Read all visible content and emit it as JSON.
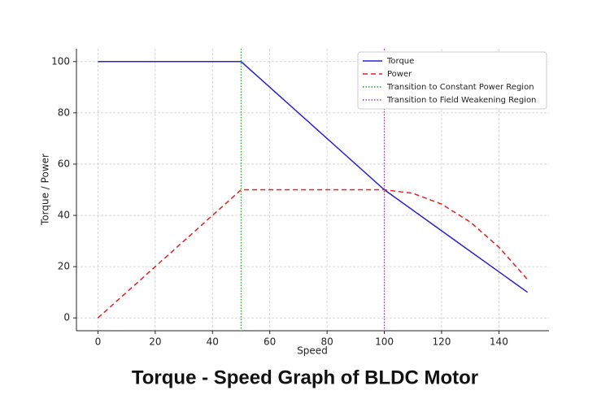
{
  "chart_data": {
    "type": "line",
    "title": "Torque - Speed Graph of BLDC Motor",
    "x_label": "Speed",
    "y_label": "Torque / Power",
    "x": [
      0,
      50,
      100,
      110,
      120,
      130,
      140,
      150
    ],
    "series": [
      {
        "name": "Torque",
        "color": "#2424d0",
        "dash": "solid",
        "values": [
          100,
          100,
          50,
          42,
          34,
          26,
          18,
          10
        ]
      },
      {
        "name": "Power",
        "color": "#e02020",
        "dash": "dashed",
        "values": [
          0,
          50,
          50,
          48.6,
          44.4,
          37.4,
          27.6,
          15
        ]
      }
    ],
    "vlines": [
      {
        "name": "Transition to Constant Power Region",
        "color": "#2a9a2a",
        "x": 50
      },
      {
        "name": "Transition to Field Weakening Region",
        "color": "#9a3ab8",
        "x": 100
      }
    ],
    "xlim": [
      -7.5,
      157.5
    ],
    "xticks": [
      0,
      20,
      40,
      60,
      80,
      100,
      120,
      140
    ],
    "ylim": [
      -5,
      105
    ],
    "yticks": [
      0,
      20,
      40,
      60,
      80,
      100
    ],
    "grid": true,
    "legend": "upper right"
  }
}
